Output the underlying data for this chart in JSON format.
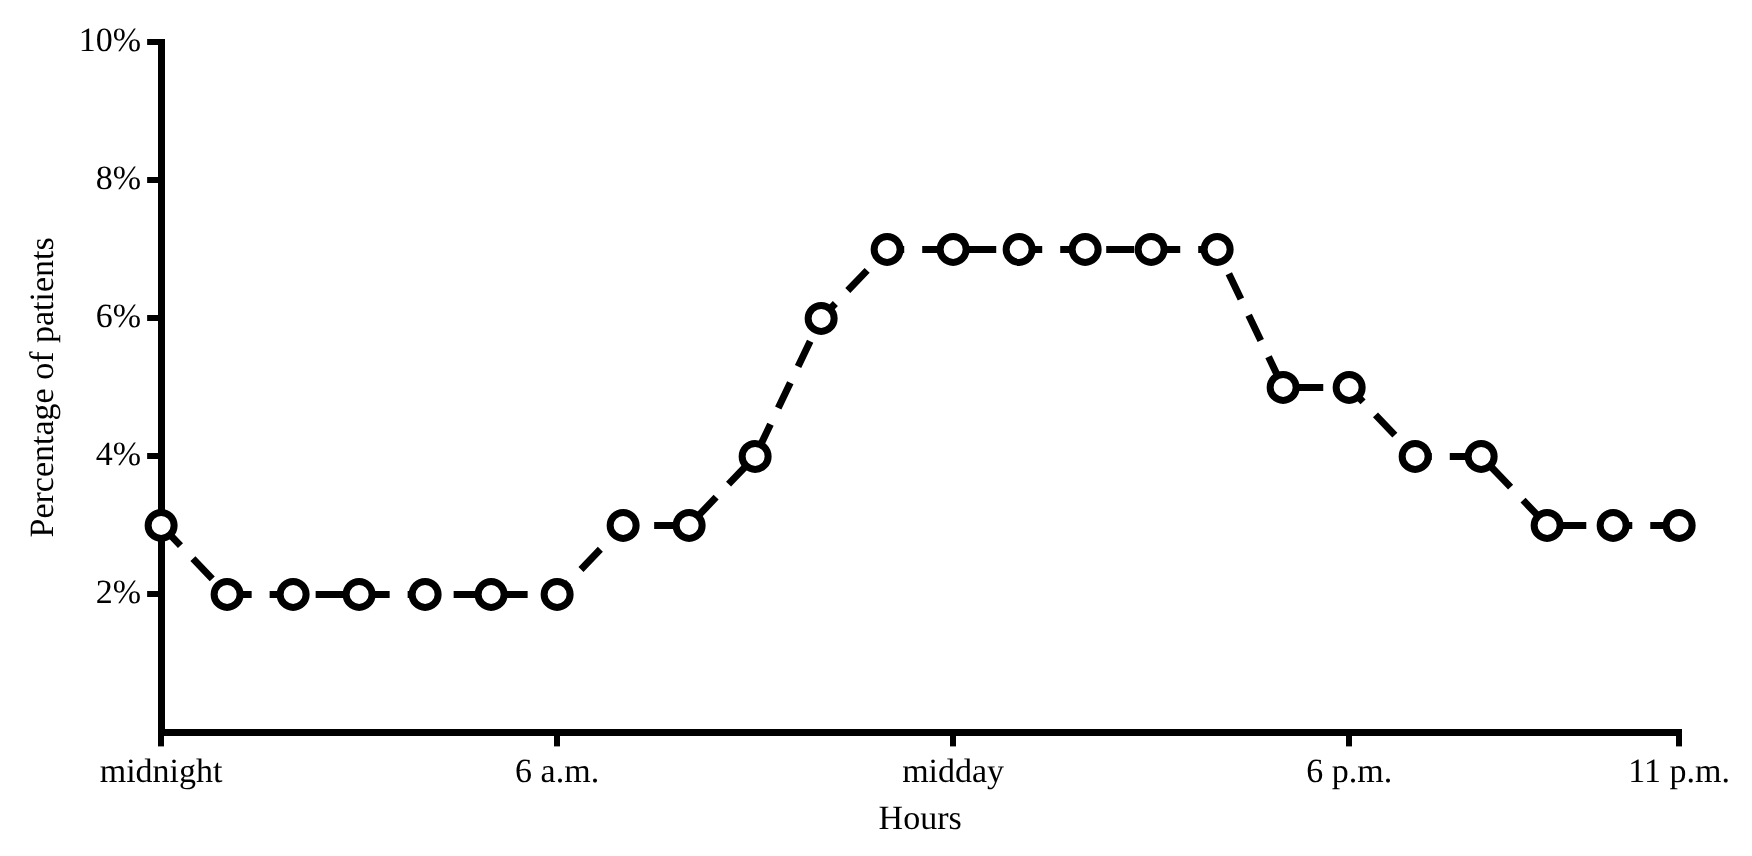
{
  "chart_data": {
    "type": "line",
    "xlabel": "Hours",
    "ylabel": "Percentage of patients",
    "categories": [
      "midnight",
      null,
      null,
      null,
      null,
      null,
      "6 a.m.",
      null,
      null,
      null,
      null,
      null,
      "midday",
      null,
      null,
      null,
      null,
      null,
      "6 p.m.",
      null,
      null,
      null,
      null,
      "11 p.m."
    ],
    "values": [
      3,
      2,
      2,
      2,
      2,
      2,
      2,
      3,
      3,
      4,
      6,
      7,
      7,
      7,
      7,
      7,
      7,
      5,
      5,
      4,
      4,
      3,
      3,
      3
    ],
    "color": "#000000",
    "ylim": [
      0,
      10
    ],
    "yticks": [
      {
        "value": 2,
        "label": "2%"
      },
      {
        "value": 4,
        "label": "4%"
      },
      {
        "value": 6,
        "label": "6%"
      },
      {
        "value": 8,
        "label": "8%"
      },
      {
        "value": 10,
        "label": "10%"
      }
    ],
    "grid": false,
    "legend": false,
    "marker": "circle",
    "line_style": "dashed"
  }
}
